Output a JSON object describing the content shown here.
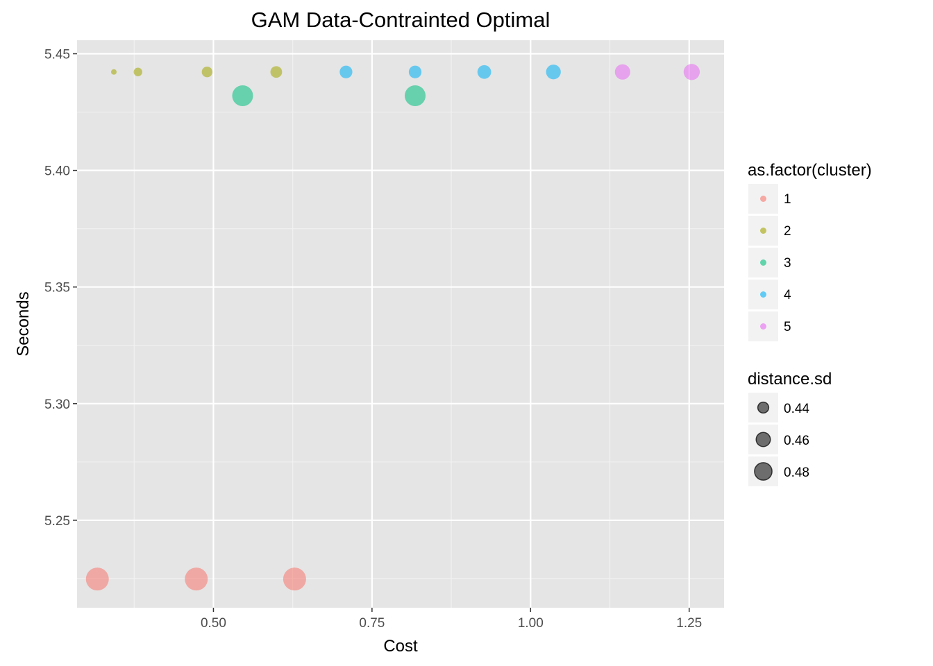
{
  "chart_data": {
    "type": "scatter",
    "title": "GAM Data-Contrainted Optimal",
    "xlabel": "Cost",
    "ylabel": "Seconds",
    "xlim": [
      0.285,
      1.305
    ],
    "ylim": [
      5.2125,
      5.4558
    ],
    "x_ticks": [
      0.5,
      0.75,
      1.0,
      1.25
    ],
    "x_tick_labels": [
      "0.50",
      "0.75",
      "1.00",
      "1.25"
    ],
    "y_ticks": [
      5.25,
      5.3,
      5.35,
      5.4,
      5.45
    ],
    "y_tick_labels": [
      "5.25",
      "5.30",
      "5.35",
      "5.40",
      "5.45"
    ],
    "grid": true,
    "background": "#e5e5e5",
    "color_legend": {
      "title": "as.factor(cluster)",
      "entries": [
        {
          "label": "1",
          "color": "#F8766D"
        },
        {
          "label": "2",
          "color": "#A3A500"
        },
        {
          "label": "3",
          "color": "#00BF7D"
        },
        {
          "label": "4",
          "color": "#00B0F6"
        },
        {
          "label": "5",
          "color": "#E76BF3"
        }
      ]
    },
    "size_legend": {
      "title": "distance.sd",
      "entries": [
        {
          "label": "0.44",
          "value": 0.44
        },
        {
          "label": "0.46",
          "value": 0.46
        },
        {
          "label": "0.48",
          "value": 0.48
        }
      ]
    },
    "legend_position": "right",
    "points": [
      {
        "x": 0.317,
        "y": 5.2248,
        "cluster": "1",
        "distance_sd": 0.485
      },
      {
        "x": 0.473,
        "y": 5.2248,
        "cluster": "1",
        "distance_sd": 0.485
      },
      {
        "x": 0.628,
        "y": 5.2248,
        "cluster": "1",
        "distance_sd": 0.485
      },
      {
        "x": 0.343,
        "y": 5.4422,
        "cluster": "2",
        "distance_sd": 0.4
      },
      {
        "x": 0.381,
        "y": 5.4422,
        "cluster": "2",
        "distance_sd": 0.415
      },
      {
        "x": 0.49,
        "y": 5.4422,
        "cluster": "2",
        "distance_sd": 0.425
      },
      {
        "x": 0.599,
        "y": 5.4422,
        "cluster": "2",
        "distance_sd": 0.43
      },
      {
        "x": 0.546,
        "y": 5.432,
        "cluster": "3",
        "distance_sd": 0.475
      },
      {
        "x": 0.818,
        "y": 5.432,
        "cluster": "3",
        "distance_sd": 0.475
      },
      {
        "x": 0.709,
        "y": 5.4422,
        "cluster": "4",
        "distance_sd": 0.435
      },
      {
        "x": 0.818,
        "y": 5.4422,
        "cluster": "4",
        "distance_sd": 0.435
      },
      {
        "x": 0.927,
        "y": 5.4422,
        "cluster": "4",
        "distance_sd": 0.44
      },
      {
        "x": 1.036,
        "y": 5.4422,
        "cluster": "4",
        "distance_sd": 0.445
      },
      {
        "x": 1.145,
        "y": 5.4422,
        "cluster": "5",
        "distance_sd": 0.448
      },
      {
        "x": 1.254,
        "y": 5.4422,
        "cluster": "5",
        "distance_sd": 0.452
      }
    ]
  }
}
